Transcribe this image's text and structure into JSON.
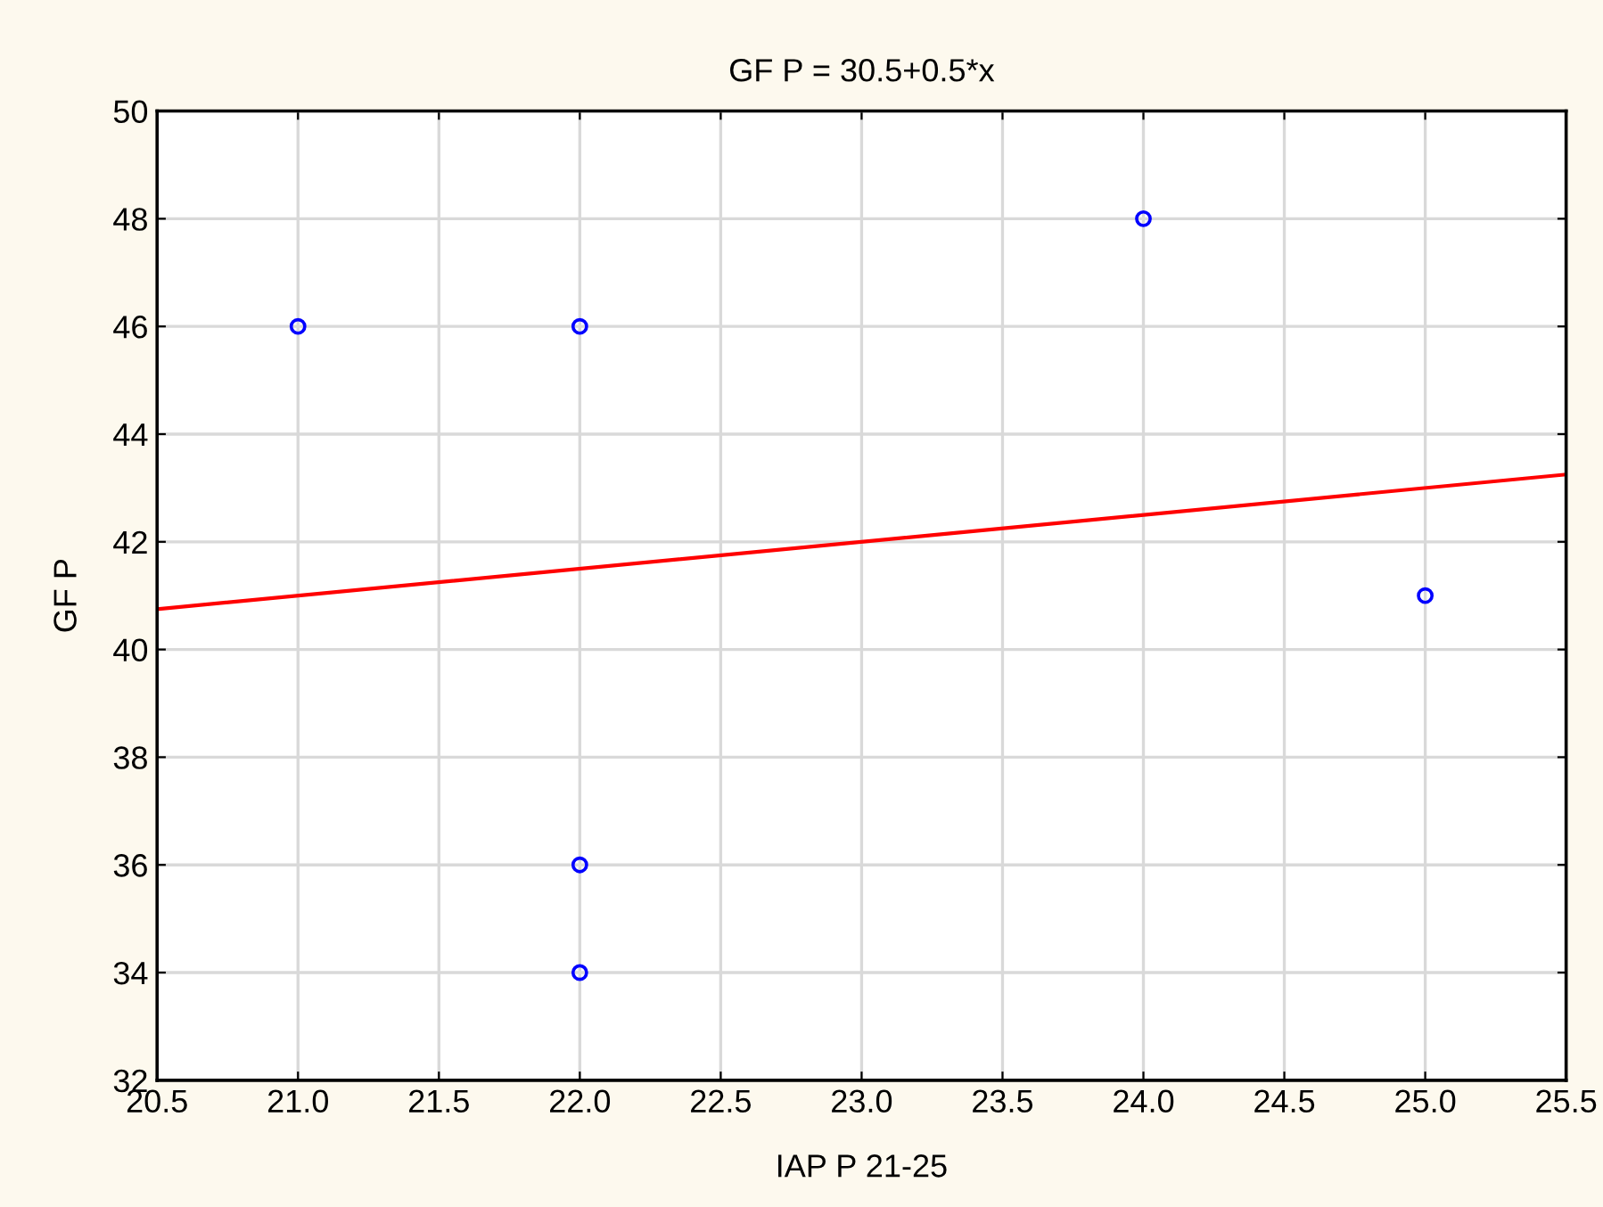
{
  "chart_data": {
    "type": "scatter",
    "title": "GF P = 30.5+0.5*x",
    "xlabel": "IAP P 21-25",
    "ylabel": "GF P",
    "x": [
      21,
      22,
      22,
      22,
      24,
      25
    ],
    "series": [
      {
        "color": "#0000ff",
        "values": [
          46,
          46,
          36,
          34,
          48,
          41
        ],
        "marker": "circle"
      },
      {
        "type": "line",
        "color": "#ff0000",
        "x": [
          20.5,
          25.5
        ],
        "values": [
          40.75,
          43.25
        ],
        "marker": "none",
        "line_style": "solid"
      }
    ],
    "xlim": [
      20.5,
      25.5
    ],
    "xticks": [
      {
        "value": 20.5,
        "label": "20.5"
      },
      {
        "value": 21,
        "label": "21.0"
      },
      {
        "value": 21.5,
        "label": "21.5"
      },
      {
        "value": 22,
        "label": "22.0"
      },
      {
        "value": 22.5,
        "label": "22.5"
      },
      {
        "value": 23,
        "label": "23.0"
      },
      {
        "value": 23.5,
        "label": "23.5"
      },
      {
        "value": 24,
        "label": "24.0"
      },
      {
        "value": 24.5,
        "label": "24.5"
      },
      {
        "value": 25,
        "label": "25.0"
      },
      {
        "value": 25.5,
        "label": "25.5"
      }
    ],
    "ylim": [
      32,
      50
    ],
    "yticks": [
      32,
      34,
      36,
      38,
      40,
      42,
      44,
      46,
      48,
      50
    ],
    "grid": true,
    "legend": false
  }
}
